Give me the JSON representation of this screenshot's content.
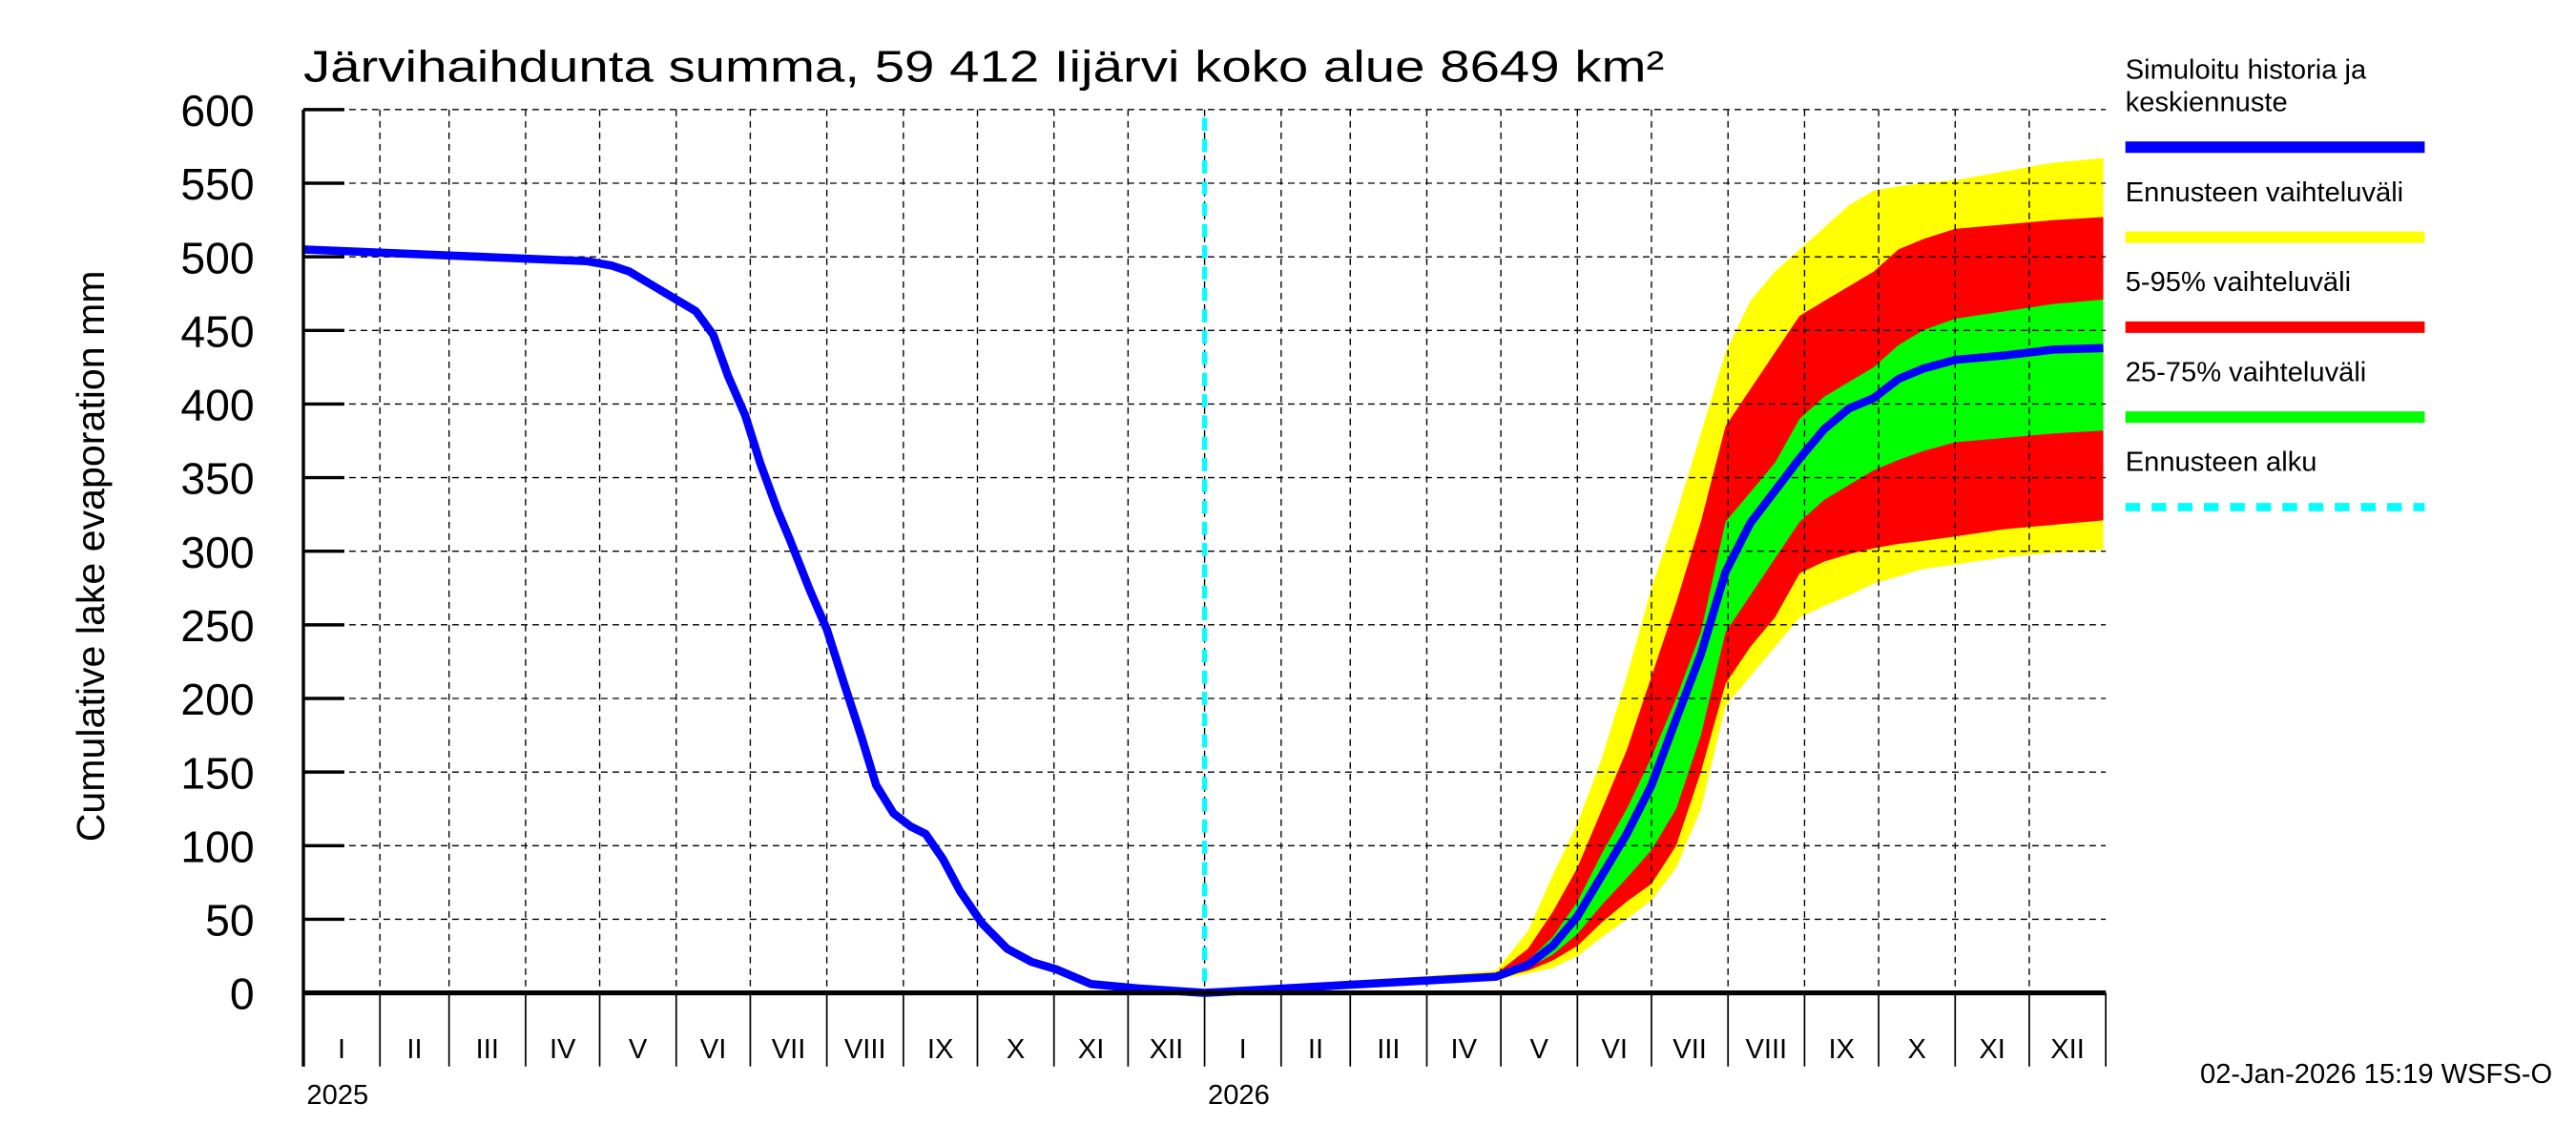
{
  "chart_data": {
    "type": "area",
    "title": "Järvihaihdunta summa, 59 412 Iijärvi koko alue 8649 km²",
    "ylabel": "Cumulative lake evaporation   mm",
    "xlabel": "",
    "ylim": [
      0,
      600
    ],
    "yticks": [
      0,
      50,
      100,
      150,
      200,
      250,
      300,
      350,
      400,
      450,
      500,
      550,
      600
    ],
    "xlim": [
      "2025-01-01",
      "2026-12-31"
    ],
    "month_labels": [
      "I",
      "II",
      "III",
      "IV",
      "V",
      "VI",
      "VII",
      "VIII",
      "IX",
      "X",
      "XI",
      "XII"
    ],
    "year_labels": [
      "2025",
      "2026"
    ],
    "grid": true,
    "legend_position": "right",
    "forecast_start": "2026-01-01",
    "timestamp": "02-Jan-2026 15:19 WSFS-O",
    "colors": {
      "median": "#0000ff",
      "range": "#ffff00",
      "p5_95": "#ff0000",
      "p25_75": "#00ff00",
      "forecast_start": "#00ffff"
    },
    "legend": [
      {
        "label_lines": [
          "Simuloitu historia ja",
          "keskiennuste"
        ],
        "color": "#0000ff",
        "style": "solid"
      },
      {
        "label_lines": [
          "Ennusteen vaihteluväli"
        ],
        "color": "#ffff00",
        "style": "solid"
      },
      {
        "label_lines": [
          "5-95% vaihteluväli"
        ],
        "color": "#ff0000",
        "style": "solid"
      },
      {
        "label_lines": [
          "25-75% vaihteluväli"
        ],
        "color": "#00ff00",
        "style": "solid"
      },
      {
        "label_lines": [
          "Ennusteen alku"
        ],
        "color": "#00ffff",
        "style": "dashed"
      }
    ],
    "history": [
      [
        "2025-01-01",
        505
      ],
      [
        "2025-04-26",
        497
      ],
      [
        "2025-05-06",
        494
      ],
      [
        "2025-05-13",
        490
      ],
      [
        "2025-05-23",
        480
      ],
      [
        "2025-06-02",
        470
      ],
      [
        "2025-06-09",
        463
      ],
      [
        "2025-06-16",
        447
      ],
      [
        "2025-06-22",
        419
      ],
      [
        "2025-06-29",
        392
      ],
      [
        "2025-07-05",
        360
      ],
      [
        "2025-07-12",
        328
      ],
      [
        "2025-07-17",
        308
      ],
      [
        "2025-07-25",
        274
      ],
      [
        "2025-08-01",
        247
      ],
      [
        "2025-08-08",
        210
      ],
      [
        "2025-08-15",
        174
      ],
      [
        "2025-08-21",
        141
      ],
      [
        "2025-08-28",
        122
      ],
      [
        "2025-09-04",
        113
      ],
      [
        "2025-09-10",
        108
      ],
      [
        "2025-09-17",
        91
      ],
      [
        "2025-09-24",
        69
      ],
      [
        "2025-10-03",
        47
      ],
      [
        "2025-10-13",
        30
      ],
      [
        "2025-10-23",
        21
      ],
      [
        "2025-11-02",
        16
      ],
      [
        "2025-11-16",
        6
      ],
      [
        "2025-12-05",
        3
      ],
      [
        "2026-01-01",
        0
      ]
    ],
    "forecast": {
      "columns": [
        "date",
        "min",
        "p5",
        "p25",
        "median",
        "p75",
        "p95",
        "max"
      ],
      "rows": [
        [
          "2026-01-01",
          0,
          0,
          0,
          0,
          0,
          0,
          0
        ],
        [
          "2026-04-29",
          9,
          10,
          10,
          11,
          12,
          13,
          15
        ],
        [
          "2026-05-12",
          13,
          15,
          17,
          19,
          22,
          30,
          42
        ],
        [
          "2026-05-22",
          17,
          22,
          26,
          32,
          38,
          55,
          80
        ],
        [
          "2026-06-01",
          25,
          32,
          40,
          52,
          62,
          85,
          115
        ],
        [
          "2026-06-11",
          38,
          48,
          60,
          80,
          95,
          125,
          160
        ],
        [
          "2026-06-21",
          50,
          62,
          78,
          108,
          125,
          165,
          215
        ],
        [
          "2026-07-01",
          63,
          74,
          97,
          141,
          160,
          215,
          275
        ],
        [
          "2026-07-11",
          85,
          100,
          125,
          186,
          200,
          265,
          325
        ],
        [
          "2026-07-21",
          125,
          150,
          175,
          230,
          245,
          320,
          380
        ],
        [
          "2026-07-31",
          195,
          210,
          245,
          286,
          320,
          385,
          435
        ],
        [
          "2026-08-10",
          215,
          235,
          270,
          319,
          340,
          410,
          470
        ],
        [
          "2026-08-20",
          235,
          255,
          295,
          341,
          360,
          435,
          490
        ],
        [
          "2026-08-30",
          255,
          285,
          320,
          363,
          390,
          460,
          505
        ],
        [
          "2026-09-09",
          263,
          293,
          335,
          383,
          405,
          470,
          520
        ],
        [
          "2026-09-19",
          270,
          298,
          345,
          397,
          415,
          480,
          535
        ],
        [
          "2026-09-29",
          278,
          302,
          355,
          404,
          425,
          490,
          545
        ],
        [
          "2026-10-09",
          283,
          305,
          362,
          417,
          440,
          505,
          548
        ],
        [
          "2026-10-19",
          288,
          307,
          368,
          424,
          450,
          512,
          550
        ],
        [
          "2026-11-01",
          291,
          310,
          374,
          430,
          458,
          519,
          552
        ],
        [
          "2026-11-21",
          296,
          315,
          377,
          433,
          463,
          522,
          558
        ],
        [
          "2026-12-11",
          299,
          318,
          380,
          437,
          468,
          525,
          564
        ],
        [
          "2026-12-31",
          301,
          321,
          382,
          438,
          471,
          527,
          567
        ]
      ]
    }
  }
}
